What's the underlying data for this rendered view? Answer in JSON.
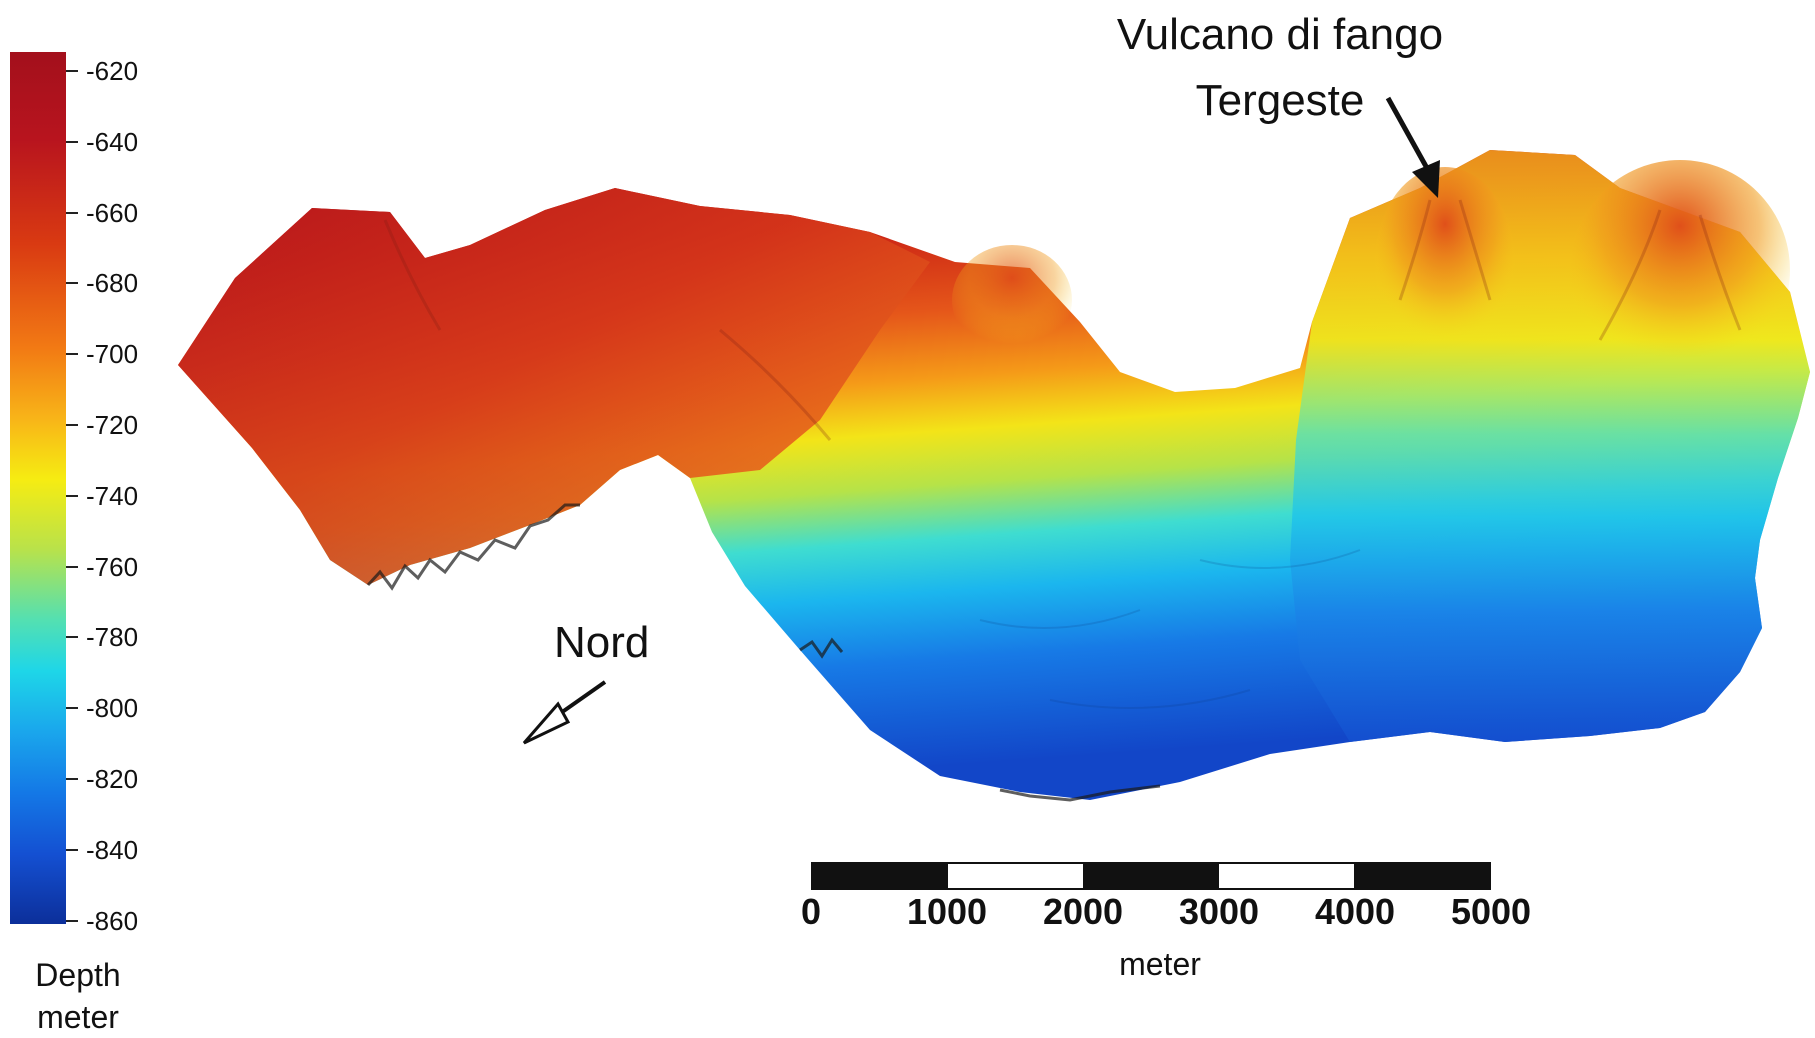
{
  "map": {
    "annotation_volcano": [
      "Vulcano di fango",
      "Tergeste"
    ],
    "north_label": "Nord",
    "legend": {
      "title_line1": "Depth",
      "title_line2": "meter",
      "ticks": [
        "-620",
        "-640",
        "-660",
        "-680",
        "-700",
        "-720",
        "-740",
        "-760",
        "-780",
        "-800",
        "-820",
        "-840",
        "-860"
      ],
      "color_stops": [
        "#a3101c",
        "#d93a12",
        "#f27a14",
        "#f6ec12",
        "#55e0b0",
        "#1ed6e8",
        "#1478e6",
        "#0c2f9a"
      ]
    },
    "scale_bar": {
      "labels": [
        "0",
        "1000",
        "2000",
        "3000",
        "4000",
        "5000"
      ],
      "unit": "meter",
      "segments": [
        "dark",
        "light",
        "dark",
        "light",
        "dark"
      ]
    }
  }
}
